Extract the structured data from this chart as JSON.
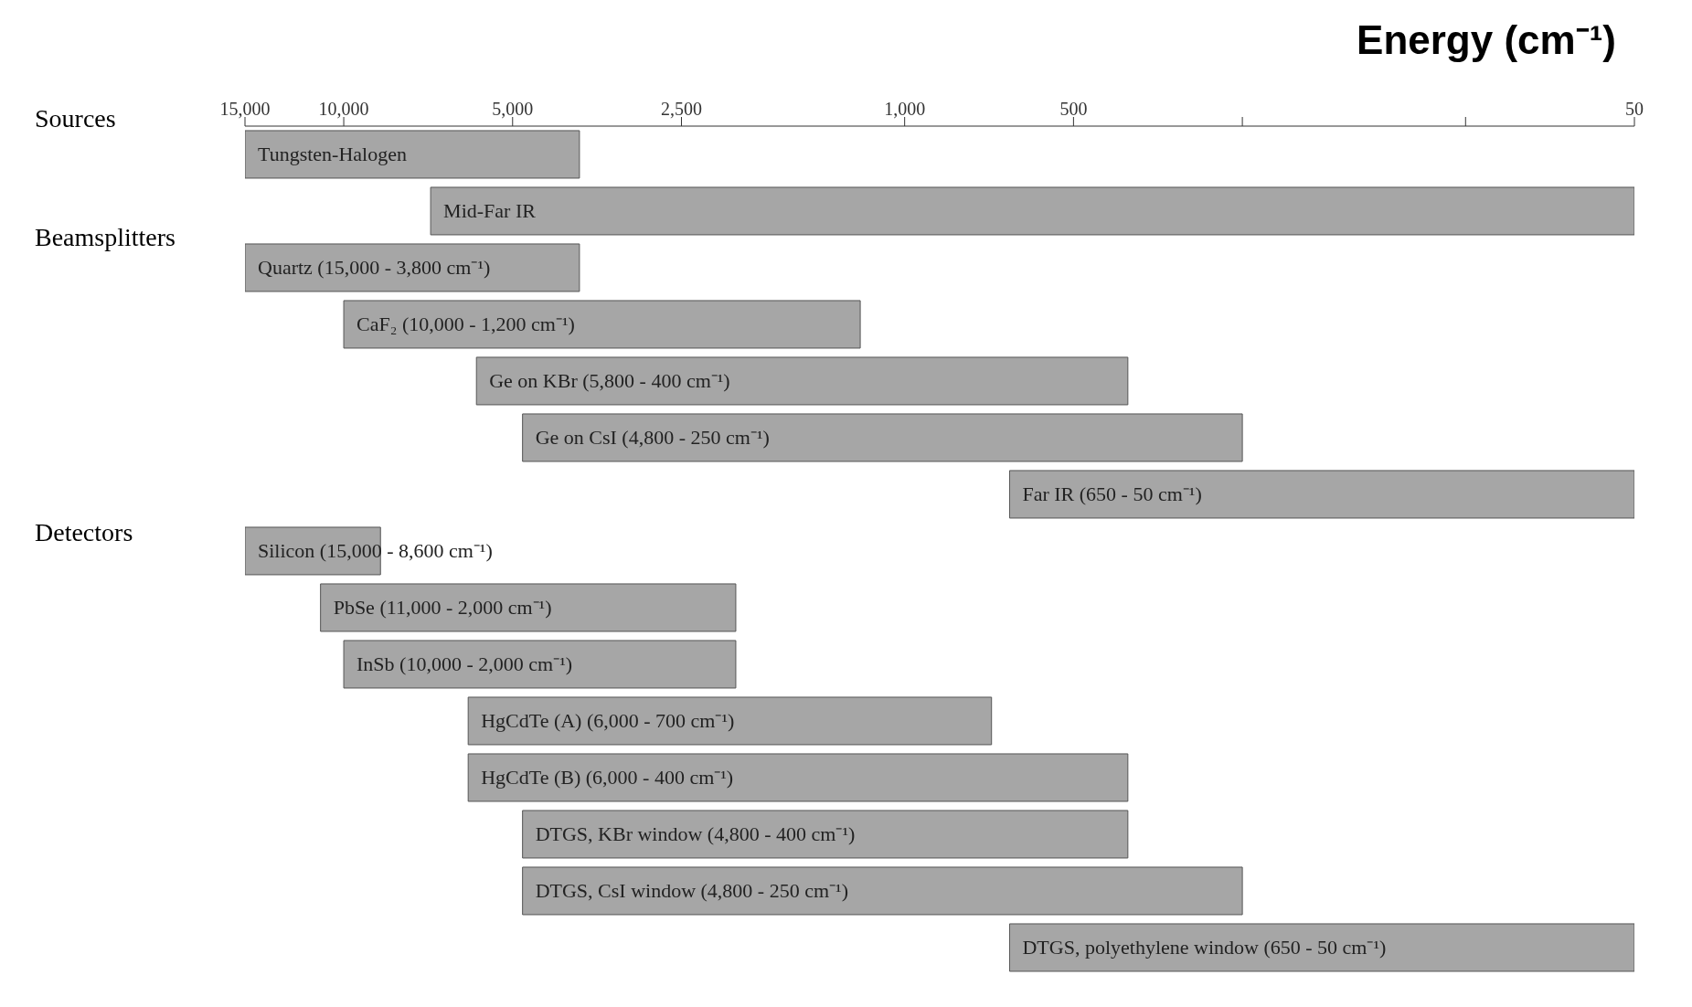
{
  "chart_data": {
    "type": "bar",
    "orientation": "horizontal",
    "xlabel": "Energy (cm⁻¹)",
    "log": "x",
    "categories": [
      "Tungsten-Halogen",
      "Mid-Far IR",
      "Quartz (15,000 - 3,800 cm⁻¹)",
      "CaF₂ (10,000 - 1,200 cm⁻¹)",
      "Ge on KBr (5,800 - 400 cm⁻¹)",
      "Ge on CsI (4,800 - 250 cm⁻¹)",
      "Far IR (650 - 50 cm⁻¹)",
      "Silicon (15,000 - 8,600 cm⁻¹)",
      "PbSe (11,000 - 2,000 cm⁻¹)",
      "InSb (10,000 - 2,000 cm⁻¹)",
      "HgCdTe (A) (6,000 - 700 cm⁻¹)",
      "HgCdTe (B) (6,000 - 400 cm⁻¹)",
      "DTGS, KBr window (4,800 - 400 cm⁻¹)",
      "DTGS, CsI window (4,800 - 250 cm⁻¹)",
      "DTGS, polyethylene window (650 - 50 cm⁻¹)"
    ],
    "base": [
      3800,
      50,
      3800,
      1200,
      400,
      250,
      50,
      8600,
      2000,
      2000,
      700,
      400,
      400,
      250,
      50
    ],
    "values": [
      11200,
      6950,
      11200,
      8800,
      5400,
      4550,
      600,
      6400,
      9000,
      8000,
      5300,
      5600,
      4400,
      4550,
      600
    ],
    "color": "#a6a6a6",
    "xlim": [
      15000,
      50
    ],
    "xticks": [
      {
        "value": 15000,
        "label": "15,000"
      },
      {
        "value": 10000,
        "label": "10,000"
      },
      {
        "value": 5000,
        "label": "5,000"
      },
      {
        "value": 2500,
        "label": "2,500"
      },
      {
        "value": 1000,
        "label": "1,000"
      },
      500,
      {
        "value": 250,
        "label": null
      },
      {
        "value": 100,
        "label": null
      },
      50
    ],
    "tick_labels": "x",
    "annotations": [
      "Sources",
      "Beamsplitters",
      "Detectors"
    ]
  }
}
